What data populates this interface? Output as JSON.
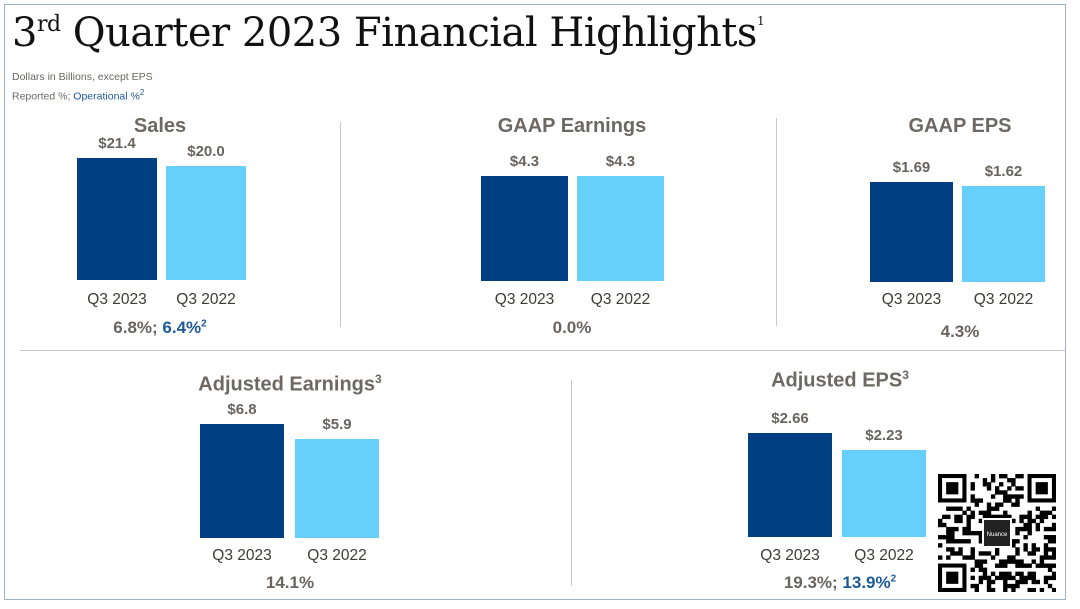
{
  "header": {
    "title_main": "3",
    "title_sup": "rd",
    "title_rest": " Quarter 2023 Financial Highlights",
    "title_footnote": "1",
    "subtitle_units": "Dollars in Billions, except EPS",
    "subtitle_reported": "Reported %; ",
    "subtitle_operational": "Operational %",
    "subtitle_operational_sup": "2"
  },
  "colors": {
    "current": "#003f82",
    "prior": "#66d0fb",
    "accent_text": "#1d5a9a"
  },
  "chart_data": [
    {
      "type": "bar",
      "title": "Sales",
      "title_sup": "",
      "categories": [
        "Q3 2023",
        "Q3 2022"
      ],
      "values": [
        21.4,
        20.0
      ],
      "value_labels": [
        "$21.4",
        "$20.0"
      ],
      "growth_reported": "6.8%; ",
      "growth_operational": "6.4%",
      "growth_sup": "2"
    },
    {
      "type": "bar",
      "title": "GAAP Earnings",
      "title_sup": "",
      "categories": [
        "Q3 2023",
        "Q3 2022"
      ],
      "values": [
        4.3,
        4.3
      ],
      "value_labels": [
        "$4.3",
        "$4.3"
      ],
      "growth_reported": "0.0%",
      "growth_operational": "",
      "growth_sup": ""
    },
    {
      "type": "bar",
      "title": "GAAP EPS",
      "title_sup": "",
      "categories": [
        "Q3 2023",
        "Q3 2022"
      ],
      "values": [
        1.69,
        1.62
      ],
      "value_labels": [
        "$1.69",
        "$1.62"
      ],
      "growth_reported": "4.3%",
      "growth_operational": "",
      "growth_sup": ""
    },
    {
      "type": "bar",
      "title": "Adjusted Earnings",
      "title_sup": "3",
      "categories": [
        "Q3 2023",
        "Q3 2022"
      ],
      "values": [
        6.8,
        5.9
      ],
      "value_labels": [
        "$6.8",
        "$5.9"
      ],
      "growth_reported": "14.1%",
      "growth_operational": "",
      "growth_sup": ""
    },
    {
      "type": "bar",
      "title": "Adjusted EPS",
      "title_sup": "3",
      "categories": [
        "Q3 2023",
        "Q3 2022"
      ],
      "values": [
        2.66,
        2.23
      ],
      "value_labels": [
        "$2.66",
        "$2.23"
      ],
      "growth_reported": "19.3%; ",
      "growth_operational": "13.9%",
      "growth_sup": "2"
    }
  ],
  "qr_code": {
    "center_label": "Nuance"
  }
}
